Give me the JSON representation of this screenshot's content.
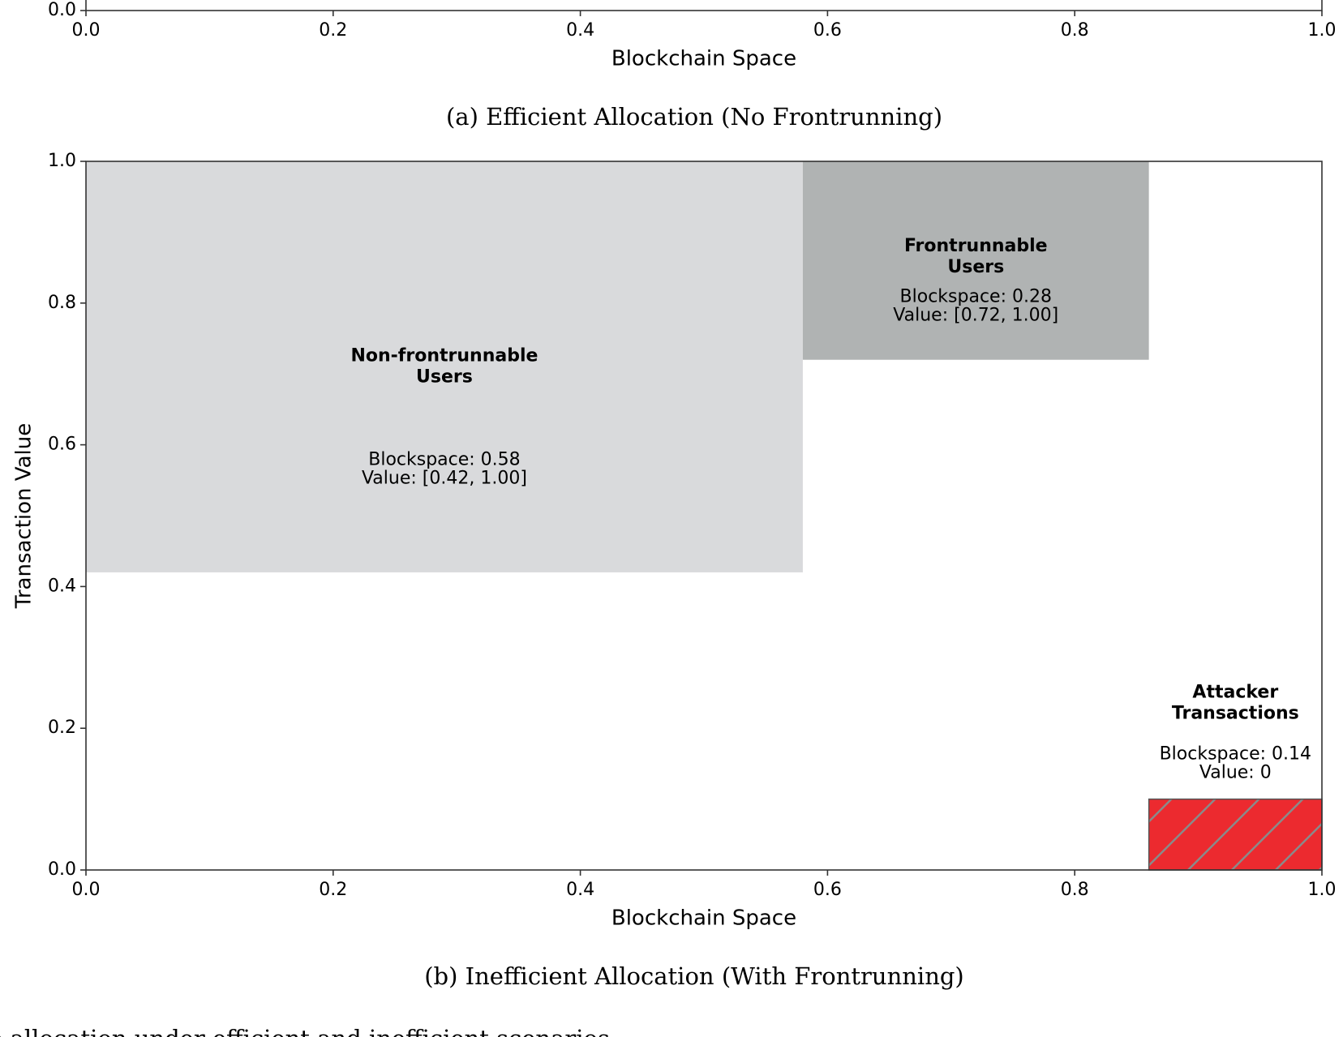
{
  "chart_data": [
    {
      "type": "block",
      "xlabel": "Blockchain Space",
      "caption": "(a) Efficient Allocation (No Frontrunning)",
      "xlim": [
        0,
        1
      ],
      "ylim": [
        0,
        1
      ],
      "xticks": [
        {
          "value": 0,
          "label": "0.0"
        },
        0.2,
        0.4,
        0.6,
        0.8,
        {
          "value": 1,
          "label": "1.0"
        }
      ],
      "yticks": [
        {
          "value": 0,
          "label": "0.0"
        }
      ],
      "blocks": []
    },
    {
      "type": "block",
      "xlabel": "Blockchain Space",
      "ylabel": "Transaction Value",
      "caption": "(b) Inefficient Allocation (With Frontrunning)",
      "xlim": [
        0,
        1
      ],
      "ylim": [
        0,
        1
      ],
      "xticks": [
        {
          "value": 0,
          "label": "0.0"
        },
        0.2,
        0.4,
        0.6,
        0.8,
        {
          "value": 1,
          "label": "1.0"
        }
      ],
      "yticks": [
        {
          "value": 0,
          "label": "0.0"
        },
        0.2,
        0.4,
        0.6,
        0.8,
        {
          "value": 1,
          "label": "1.0"
        }
      ],
      "blocks": [
        {
          "name_lines": [
            "Non-frontrunnable",
            "Users"
          ],
          "detail_lines": [
            "Blockspace: 0.58",
            "Value: [0.42, 1.00]"
          ],
          "xrange": [
            0,
            0.58
          ],
          "yrange": [
            0.42,
            1.0
          ],
          "color": "#d9dadc"
        },
        {
          "name_lines": [
            "Frontrunnable",
            "Users"
          ],
          "detail_lines": [
            "Blockspace: 0.28",
            "Value: [0.72, 1.00]"
          ],
          "xrange": [
            0.58,
            0.86
          ],
          "yrange": [
            0.72,
            1.0
          ],
          "color": "#b0b3b3"
        },
        {
          "name_lines": [
            "Attacker",
            "Transactions"
          ],
          "detail_lines": [
            "Blockspace: 0.14",
            "Value: 0"
          ],
          "xrange": [
            0.86,
            1.0
          ],
          "yrange": [
            0,
            0.1
          ],
          "color": "#ec2a2f",
          "hatch": "/"
        }
      ]
    }
  ],
  "footer_text": "ce allocation under efficient and inefficient scenarios."
}
